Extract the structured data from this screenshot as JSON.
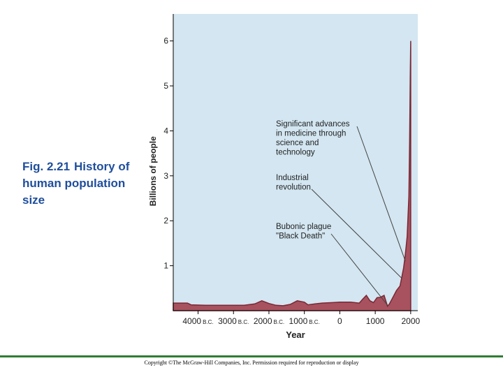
{
  "caption": {
    "figure": "Fig. 2.21",
    "text": "History of human population size"
  },
  "copyright": "Copyright ©The McGraw-Hill Companies, Inc. Permission required for reproduction or display",
  "colors": {
    "plot_background": "#d3e6f1",
    "area_fill": "#a8525f",
    "area_stroke": "#7a2733",
    "caption_text": "#1f4e9c",
    "rule": "#2e7d32"
  },
  "chart_data": {
    "type": "area",
    "title": "",
    "xlabel": "Year",
    "ylabel": "Billions of people",
    "xlim": [
      -4700,
      2200
    ],
    "ylim": [
      0,
      6.6
    ],
    "grid": false,
    "x_ticks": [
      -4000,
      -3000,
      -2000,
      -1000,
      0,
      1000,
      2000
    ],
    "x_tick_labels": [
      "4000",
      "3000",
      "2000",
      "1000",
      "0",
      "1000",
      "2000"
    ],
    "x_tick_era": [
      "B.C.",
      "B.C.",
      "B.C.",
      "B.C.",
      "",
      "",
      ""
    ],
    "y_ticks": [
      1,
      2,
      3,
      4,
      5,
      6
    ],
    "y_tick_labels": [
      "1",
      "2",
      "3",
      "4",
      "5",
      "6"
    ],
    "series": [
      {
        "x": [
          -4700,
          -4300,
          -4200,
          -3800,
          -3200,
          -2700,
          -2400,
          -2200,
          -2000,
          -1800,
          -1600,
          -1400,
          -1200,
          -1000,
          -900,
          -700,
          -500,
          -200,
          0,
          300,
          550,
          650,
          750,
          850,
          950,
          1050,
          1150,
          1250,
          1347,
          1400,
          1500,
          1600,
          1700,
          1750,
          1800,
          1850,
          1900,
          1950,
          1970,
          1990,
          2000
        ],
        "values": [
          0.17,
          0.17,
          0.13,
          0.12,
          0.12,
          0.12,
          0.15,
          0.22,
          0.16,
          0.12,
          0.11,
          0.14,
          0.22,
          0.19,
          0.13,
          0.15,
          0.17,
          0.18,
          0.19,
          0.19,
          0.17,
          0.26,
          0.34,
          0.22,
          0.18,
          0.29,
          0.3,
          0.34,
          0.1,
          0.15,
          0.3,
          0.45,
          0.55,
          0.75,
          0.95,
          1.25,
          1.65,
          2.55,
          3.7,
          5.3,
          6.0
        ]
      }
    ],
    "annotations": [
      {
        "lines": [
          "Significant advances",
          "in medicine through",
          "science and",
          "technology"
        ],
        "x": 1850,
        "y": 1.1
      },
      {
        "lines": [
          "Industrial",
          "revolution"
        ],
        "x": 1750,
        "y": 0.72
      },
      {
        "lines": [
          "Bubonic plague",
          "\"Black Death\""
        ],
        "x": 1347,
        "y": 0.12
      }
    ]
  }
}
